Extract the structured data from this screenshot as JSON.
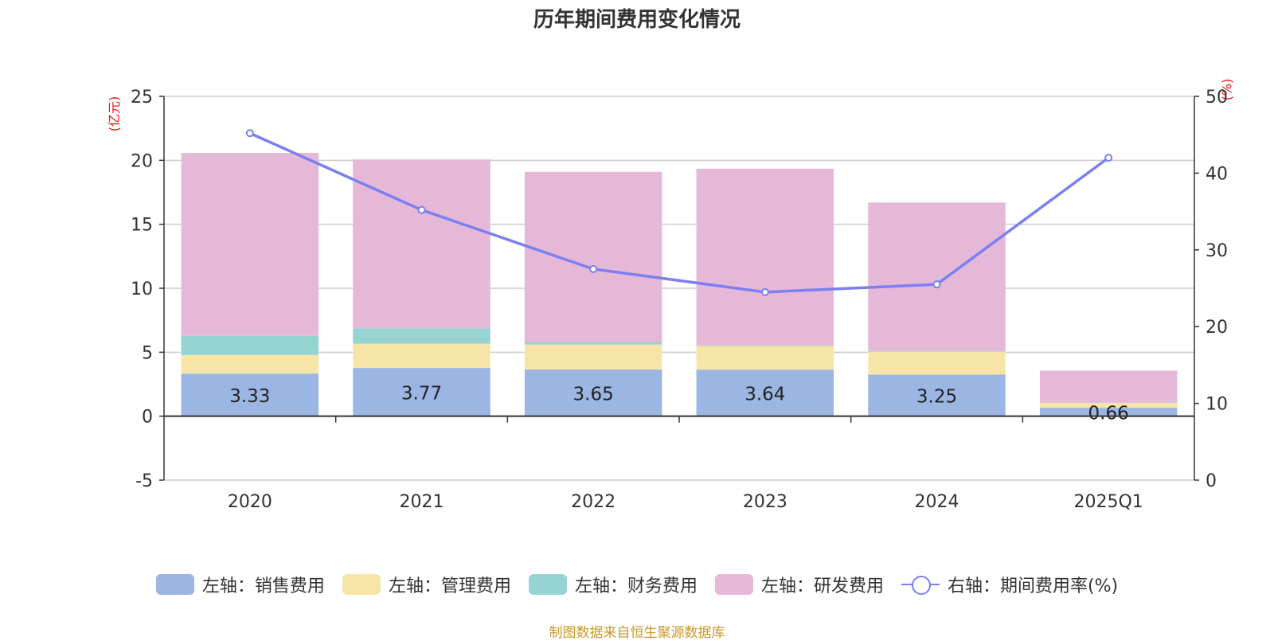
{
  "title": "历年期间费用变化情况",
  "left_unit": "(亿元)",
  "right_unit": "(%)",
  "source": "制图数据来自恒生聚源数据库",
  "colors": {
    "sales": "#9bb6e3",
    "management": "#f7e5a8",
    "finance": "#96d3d3",
    "rnd": "#e6b8d8",
    "line": "#7b7ff0"
  },
  "legend": [
    {
      "label": "左轴：销售费用",
      "color": "#9bb6e3",
      "kind": "bar"
    },
    {
      "label": "左轴：管理费用",
      "color": "#f7e5a8",
      "kind": "bar"
    },
    {
      "label": "左轴：财务费用",
      "color": "#96d3d3",
      "kind": "bar"
    },
    {
      "label": "左轴：研发费用",
      "color": "#e6b8d8",
      "kind": "bar"
    },
    {
      "label": "右轴：期间费用率(%)",
      "color": "#7b7ff0",
      "kind": "line"
    }
  ],
  "chart_data": {
    "type": "bar",
    "stacked": true,
    "categories": [
      "2020",
      "2021",
      "2022",
      "2023",
      "2024",
      "2025Q1"
    ],
    "left_axis": {
      "ylim": [
        -5,
        25
      ],
      "ticks": [
        -5,
        0,
        5,
        10,
        15,
        20,
        25
      ],
      "label": "(亿元)"
    },
    "right_axis": {
      "ylim": [
        0,
        50
      ],
      "ticks": [
        0,
        10,
        20,
        30,
        40,
        50
      ],
      "label": "(%)"
    },
    "grid": true,
    "legend_position": "bottom",
    "series": [
      {
        "name": "左轴：销售费用",
        "axis": "left",
        "type": "bar",
        "values": [
          3.33,
          3.77,
          3.65,
          3.64,
          3.25,
          0.66
        ],
        "labels": [
          "3.33",
          "3.77",
          "3.65",
          "3.64",
          "3.25",
          "0.66"
        ]
      },
      {
        "name": "左轴：管理费用",
        "axis": "left",
        "type": "bar",
        "values": [
          1.45,
          1.9,
          1.95,
          1.85,
          1.8,
          0.38
        ]
      },
      {
        "name": "左轴：财务费用",
        "axis": "left",
        "type": "bar",
        "values": [
          1.5,
          1.2,
          0.2,
          0.05,
          0.05,
          0.02
        ]
      },
      {
        "name": "左轴：研发费用",
        "axis": "left",
        "type": "bar",
        "values": [
          14.3,
          13.2,
          13.3,
          13.8,
          11.6,
          2.5
        ]
      },
      {
        "name": "右轴：期间费用率(%)",
        "axis": "right",
        "type": "line",
        "values": [
          45.2,
          35.2,
          27.5,
          24.5,
          25.5,
          42.0
        ]
      }
    ]
  }
}
